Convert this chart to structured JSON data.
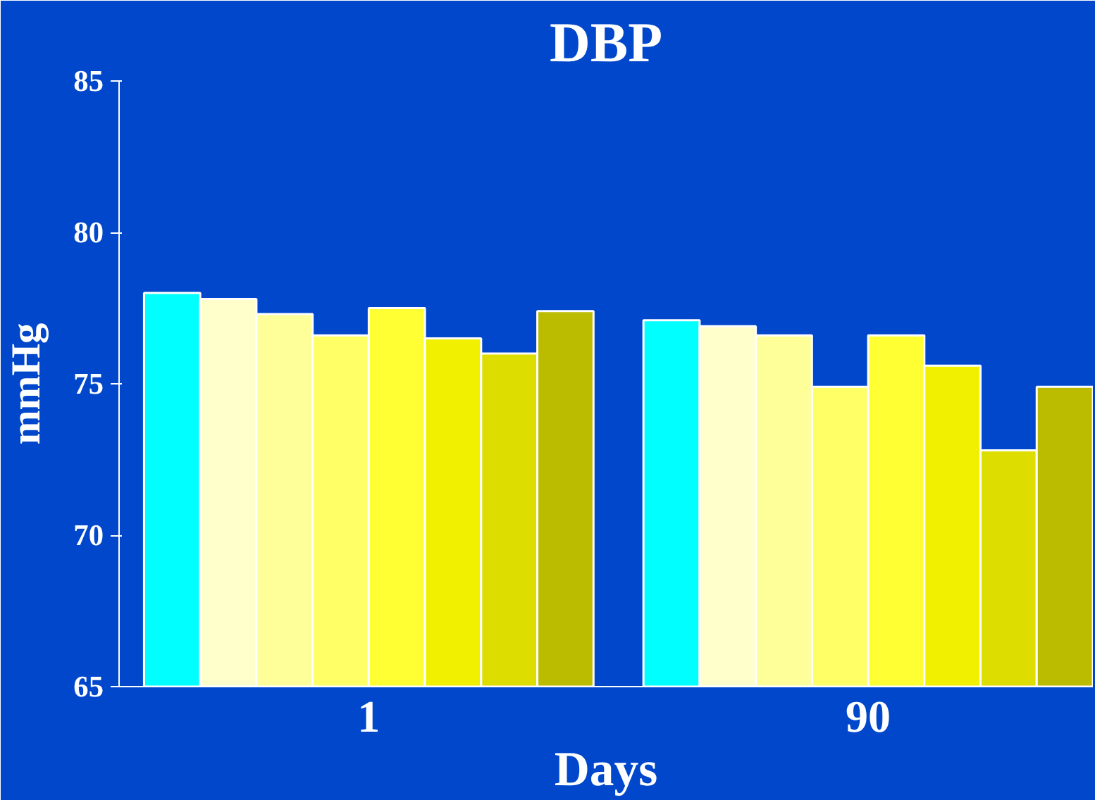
{
  "chart_data": {
    "type": "bar",
    "title": "DBP",
    "xlabel": "Days",
    "ylabel": "mmHg",
    "categories": [
      "1",
      "90"
    ],
    "series": [
      {
        "color": "#00ffff",
        "values": [
          78.0,
          77.1
        ]
      },
      {
        "color": "#ffffcc",
        "values": [
          77.8,
          76.9
        ]
      },
      {
        "color": "#ffff99",
        "values": [
          77.3,
          76.6
        ]
      },
      {
        "color": "#ffff66",
        "values": [
          76.6,
          74.9
        ]
      },
      {
        "color": "#ffff33",
        "values": [
          77.5,
          76.6
        ]
      },
      {
        "color": "#f0f000",
        "values": [
          76.5,
          75.6
        ]
      },
      {
        "color": "#dddd00",
        "values": [
          76.0,
          72.8
        ]
      },
      {
        "color": "#bbbb00",
        "values": [
          77.4,
          74.9
        ]
      }
    ],
    "ylim": [
      65,
      85
    ],
    "yticks": [
      65,
      70,
      75,
      80,
      85
    ],
    "grid": false
  }
}
